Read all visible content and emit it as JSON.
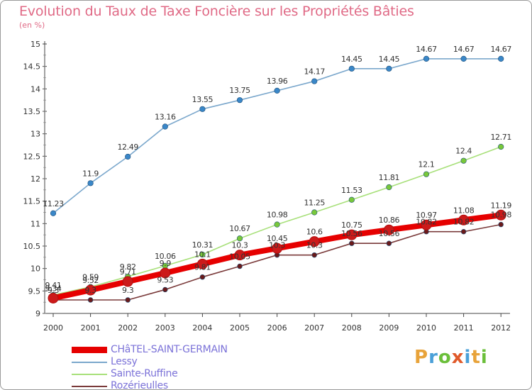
{
  "title": "Evolution du Taux de Taxe Foncière sur les Propriétés Bâties",
  "unit_label": "(en %)",
  "logo": {
    "text": "Proxiti",
    "letters": [
      "P",
      "r",
      "o",
      "x",
      "i",
      "t",
      "i"
    ],
    "colors": [
      "#e8a33a",
      "#4aa0d8",
      "#6bbf3a",
      "#e05a2a",
      "#4aa0d8",
      "#e8a33a",
      "#6bbf3a"
    ]
  },
  "chart_data": {
    "type": "line",
    "title": "Evolution du Taux de Taxe Foncière sur les Propriétés Bâties",
    "xlabel": "",
    "ylabel": "(en %)",
    "categories": [
      "2000",
      "2001",
      "2002",
      "2003",
      "2004",
      "2005",
      "2006",
      "2007",
      "2008",
      "2009",
      "2010",
      "2011",
      "2012"
    ],
    "ylim": [
      9,
      15
    ],
    "yticks": [
      "9",
      "9.5",
      "10",
      "10.5",
      "11",
      "11.5",
      "12",
      "12.5",
      "13",
      "13.5",
      "14",
      "14.5",
      "15"
    ],
    "grid": false,
    "legend_position": "bottom-left",
    "series": [
      {
        "name": "CHâTEL-SAINT-GERMAIN",
        "color": "#e60000",
        "marker": "#cc1a1a",
        "values": [
          9.34,
          9.52,
          9.71,
          9.9,
          10.1,
          10.3,
          10.45,
          10.6,
          10.75,
          10.86,
          10.97,
          11.08,
          11.19
        ],
        "labels": [
          "9.34",
          "9.52",
          "9.71",
          "9.9",
          "10.1",
          "10.3",
          "10.45",
          "10.6",
          "10.75",
          "10.86",
          "10.97",
          "11.08",
          "11.19"
        ]
      },
      {
        "name": "Lessy",
        "color": "#7aa7cc",
        "marker": "#3a87c8",
        "values": [
          11.23,
          11.9,
          12.49,
          13.16,
          13.55,
          13.75,
          13.96,
          14.17,
          14.45,
          14.45,
          14.67,
          14.67,
          14.67
        ],
        "labels": [
          "11.23",
          "11.9",
          "12.49",
          "13.16",
          "13.55",
          "13.75",
          "13.96",
          "14.17",
          "14.45",
          "14.45",
          "14.67",
          "14.67",
          "14.67"
        ]
      },
      {
        "name": "Sainte-Ruffine",
        "color": "#a8e07a",
        "marker": "#78c83a",
        "values": [
          9.41,
          9.59,
          9.82,
          10.06,
          10.31,
          10.67,
          10.98,
          11.25,
          11.53,
          11.81,
          12.1,
          12.4,
          12.71
        ],
        "labels": [
          "9.41",
          "9.59",
          "9.82",
          "10.06",
          "10.31",
          "10.67",
          "10.98",
          "11.25",
          "11.53",
          "11.81",
          "12.1",
          "12.4",
          "12.71"
        ]
      },
      {
        "name": "Rozérieulles",
        "color": "#7a3a3a",
        "marker": "#6a1a1a",
        "values": [
          9.3,
          9.3,
          9.3,
          9.53,
          9.81,
          10.05,
          10.3,
          10.3,
          10.56,
          10.56,
          10.82,
          10.82,
          10.98
        ],
        "labels": [
          "9.3",
          "9.3",
          "9.3",
          "9.53",
          "9.81",
          "10.05",
          "10.3",
          "10.3",
          "10.56",
          "10.56",
          "10.82",
          "10.82",
          "10.98"
        ]
      }
    ]
  }
}
